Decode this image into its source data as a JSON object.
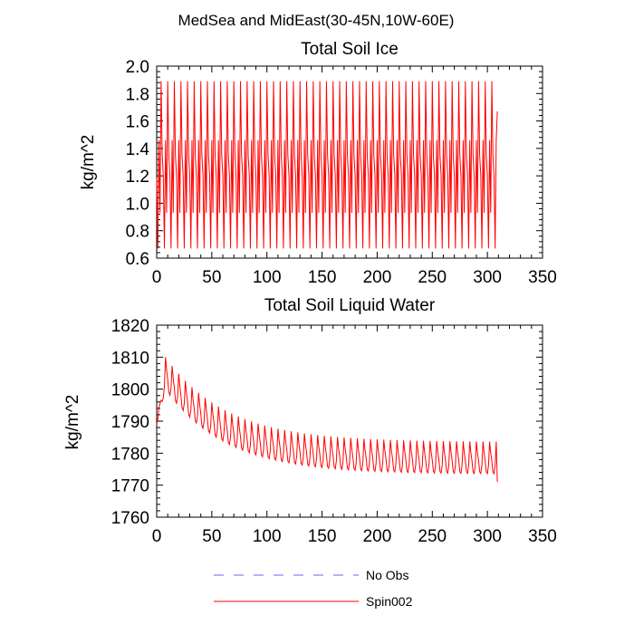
{
  "figure": {
    "title": "MedSea and MidEast(30-45N,10W-60E)"
  },
  "legend": {
    "placement": "bottom-center",
    "entries": [
      {
        "label": "No Obs",
        "color": "#6666ff",
        "style": "dashed"
      },
      {
        "label": "Spin002",
        "color": "#ff0000",
        "style": "solid"
      }
    ]
  },
  "chart_data": [
    {
      "type": "line",
      "title": "Total Soil Ice",
      "xlabel": "",
      "ylabel": "kg/m^2",
      "xlim": [
        0,
        350
      ],
      "ylim": [
        0.6,
        2.0
      ],
      "xticks": [
        0,
        50,
        100,
        150,
        200,
        250,
        300,
        350
      ],
      "yticks": [
        0.6,
        0.8,
        1.0,
        1.2,
        1.4,
        1.6,
        1.8,
        2.0
      ],
      "ytick_labels": [
        "0.6",
        "0.8",
        "1.0",
        "1.2",
        "1.4",
        "1.6",
        "1.8",
        "2.0"
      ],
      "series": [
        {
          "name": "Spin002",
          "color": "#ff0000",
          "x_start": 0,
          "x_end": 309,
          "period_months": 6,
          "cycle_values": [
            1.2,
            0.67,
            1.46,
            0.93,
            1.89,
            1.35
          ],
          "start_value": 1.18,
          "end_value": 1.67
        }
      ]
    },
    {
      "type": "line",
      "title": "Total Soil Liquid Water",
      "xlabel": "",
      "ylabel": "kg/m^2",
      "xlim": [
        0,
        350
      ],
      "ylim": [
        1760,
        1820
      ],
      "xticks": [
        0,
        50,
        100,
        150,
        200,
        250,
        300,
        350
      ],
      "yticks": [
        1760,
        1770,
        1780,
        1790,
        1800,
        1810,
        1820
      ],
      "ytick_labels": [
        "1760",
        "1770",
        "1780",
        "1790",
        "1800",
        "1810",
        "1820"
      ],
      "series": [
        {
          "name": "Spin002",
          "color": "#ff0000",
          "x_start": 0,
          "x_end": 309,
          "period_months": 6,
          "start_value": 1789,
          "end_value": 1771,
          "baseline": {
            "asymptote": 1773.5,
            "peak": 1800,
            "peak_x": 8,
            "decay_months": 55
          },
          "cycle_offsets": [
            0,
            2.5,
            10,
            6.5,
            4,
            0.5
          ]
        }
      ]
    }
  ]
}
